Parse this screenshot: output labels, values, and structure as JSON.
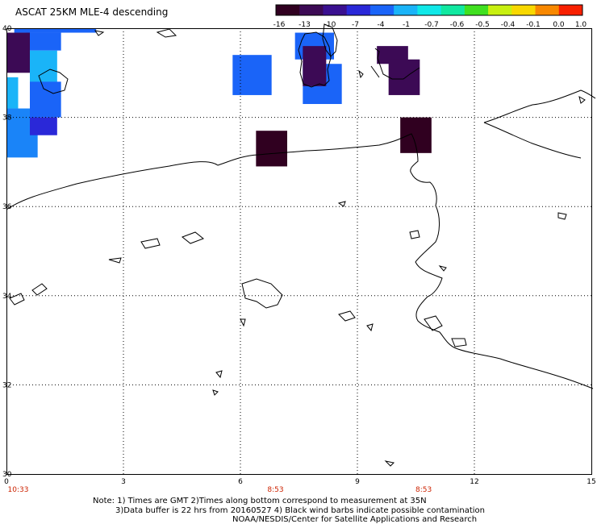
{
  "title": "ASCAT 25KM MLE-4 descending",
  "colorbar": {
    "colors": [
      "#300020",
      "#3c0a55",
      "#3a1090",
      "#2a28d8",
      "#1a64f8",
      "#1ab4f8",
      "#10e8e8",
      "#10e8a0",
      "#40e020",
      "#c8f010",
      "#f8d800",
      "#f88800",
      "#f82000"
    ],
    "labels": [
      "-16",
      "-13",
      "-10",
      "-7",
      "-4",
      "-1",
      "-0.7",
      "-0.6",
      "-0.5",
      "-0.4",
      "-0.1",
      "0.0",
      "1.0"
    ]
  },
  "axes": {
    "x_ticks": [
      "0",
      "3",
      "6",
      "9",
      "12",
      "15"
    ],
    "y_ticks": [
      "40",
      "38",
      "36",
      "34",
      "32",
      "30"
    ]
  },
  "pass_times": [
    {
      "label": "10:33",
      "lon": 0.3
    },
    {
      "label": "8:53",
      "lon": 6.9
    },
    {
      "label": "8:53",
      "lon": 10.7
    }
  ],
  "wind_cells": [
    {
      "lon0": 0.2,
      "lon1": 2.3,
      "lat0": 39.9,
      "lat1": 40.0,
      "color": "#1a64f8"
    },
    {
      "lon0": 0.5,
      "lon1": 1.4,
      "lat0": 39.5,
      "lat1": 39.9,
      "color": "#1a64f8"
    },
    {
      "lon0": 0.6,
      "lon1": 1.3,
      "lat0": 38.7,
      "lat1": 39.5,
      "color": "#1ab4f8"
    },
    {
      "lon0": 0.0,
      "lon1": 0.6,
      "lat0": 39.0,
      "lat1": 39.9,
      "color": "#3c0a55"
    },
    {
      "lon0": 0.0,
      "lon1": 0.3,
      "lat0": 38.2,
      "lat1": 38.9,
      "color": "#1ab4f8"
    },
    {
      "lon0": 0.0,
      "lon1": 0.8,
      "lat0": 37.1,
      "lat1": 38.2,
      "color": "#1a84f8"
    },
    {
      "lon0": 0.6,
      "lon1": 1.4,
      "lat0": 38.0,
      "lat1": 38.8,
      "color": "#1a64f8"
    },
    {
      "lon0": 0.6,
      "lon1": 1.3,
      "lat0": 37.6,
      "lat1": 38.0,
      "color": "#2a28d8"
    },
    {
      "lon0": 5.8,
      "lon1": 6.8,
      "lat0": 38.5,
      "lat1": 39.4,
      "color": "#1a64f8"
    },
    {
      "lon0": 7.4,
      "lon1": 8.4,
      "lat0": 39.3,
      "lat1": 39.9,
      "color": "#1a64f8"
    },
    {
      "lon0": 7.6,
      "lon1": 8.6,
      "lat0": 38.3,
      "lat1": 39.2,
      "color": "#1a64f8"
    },
    {
      "lon0": 7.6,
      "lon1": 8.2,
      "lat0": 38.7,
      "lat1": 39.6,
      "color": "#3c0a55"
    },
    {
      "lon0": 9.5,
      "lon1": 10.3,
      "lat0": 39.2,
      "lat1": 39.6,
      "color": "#3c0a55"
    },
    {
      "lon0": 9.8,
      "lon1": 10.6,
      "lat0": 38.5,
      "lat1": 39.3,
      "color": "#3c0a55"
    },
    {
      "lon0": 10.1,
      "lon1": 10.9,
      "lat0": 37.2,
      "lat1": 38.0,
      "color": "#300020"
    },
    {
      "lon0": 6.4,
      "lon1": 7.2,
      "lat0": 36.9,
      "lat1": 37.7,
      "color": "#300020"
    }
  ],
  "footer": {
    "line1": "Note: 1) Times are GMT 2)Times along bottom correspond to measurement at 35N",
    "line2": "3)Data buffer is 22 hrs from 20160527 4) Black wind barbs indicate possible contamination",
    "line3": "NOAA/NESDIS/Center for Satellite Applications and Research"
  }
}
